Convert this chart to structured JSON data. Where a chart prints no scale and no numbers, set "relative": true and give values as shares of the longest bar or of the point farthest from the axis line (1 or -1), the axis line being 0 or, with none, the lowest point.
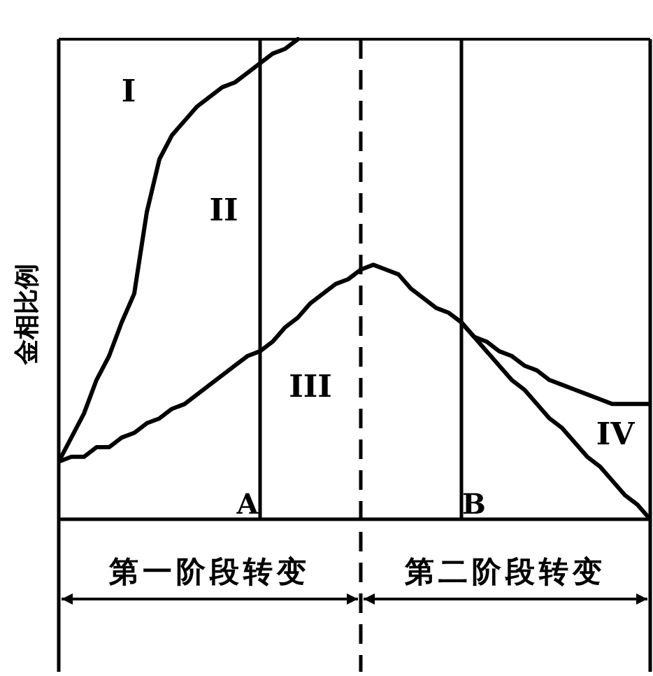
{
  "chart_data": {
    "type": "line",
    "relative": true,
    "ylabel": "金相比例",
    "line_style": "solid",
    "categories": [
      null,
      null,
      null,
      null,
      null,
      null,
      null,
      null,
      null,
      null,
      null,
      null,
      null,
      null,
      null,
      "A",
      null,
      null,
      null,
      null,
      null,
      null,
      null,
      null,
      null,
      null,
      null,
      null,
      null,
      null,
      null,
      null,
      null,
      "B",
      null,
      null,
      null,
      null,
      null,
      null,
      null,
      null,
      null,
      null,
      null,
      null,
      null,
      null
    ],
    "series": [
      {
        "color": "#000000",
        "values": [
          0.12,
          0.17,
          0.22,
          0.29,
          0.34,
          0.41,
          0.47,
          0.64,
          0.75,
          0.8,
          0.83,
          0.86,
          0.88,
          0.9,
          0.91,
          0.93,
          0.95,
          0.97,
          0.98,
          1.0,
          null,
          null,
          null,
          null,
          null,
          null,
          null,
          null,
          null,
          null,
          null,
          null,
          null,
          null,
          null,
          null,
          null,
          null,
          null,
          null,
          null,
          null,
          null,
          null,
          null,
          null,
          null,
          null
        ]
      },
      {
        "color": "#000000",
        "values": [
          0.12,
          0.13,
          0.13,
          0.15,
          0.15,
          0.17,
          0.18,
          0.2,
          0.21,
          0.23,
          0.24,
          0.26,
          0.28,
          0.3,
          0.32,
          0.34,
          0.35,
          0.37,
          0.4,
          0.42,
          0.45,
          0.47,
          0.49,
          0.5,
          0.52,
          0.53,
          0.52,
          0.51,
          0.48,
          0.46,
          0.44,
          0.43,
          0.41,
          0.38,
          0.37,
          0.35,
          0.34,
          0.32,
          0.31,
          0.29,
          0.28,
          0.27,
          0.26,
          0.25,
          0.24,
          0.24,
          0.24,
          0.24
        ]
      },
      {
        "color": "#000000",
        "values": [
          null,
          null,
          null,
          null,
          null,
          null,
          null,
          null,
          null,
          null,
          null,
          null,
          null,
          null,
          null,
          null,
          null,
          null,
          null,
          null,
          null,
          null,
          null,
          null,
          null,
          null,
          null,
          null,
          null,
          null,
          null,
          null,
          0.41,
          0.38,
          0.35,
          0.32,
          0.29,
          0.27,
          0.24,
          0.21,
          0.19,
          0.16,
          0.13,
          0.11,
          0.08,
          0.05,
          0.03,
          0.0
        ]
      }
    ],
    "annotations": [
      "I",
      "II",
      "III",
      "IV",
      "第一阶段转变",
      "第二阶段转变"
    ]
  }
}
